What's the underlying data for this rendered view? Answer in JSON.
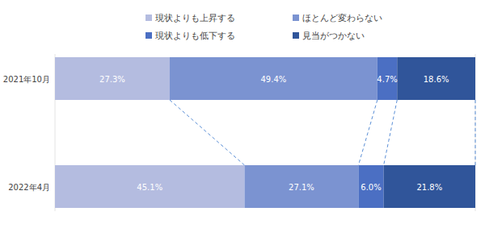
{
  "chart_data": {
    "type": "bar",
    "orientation": "horizontal",
    "stacked": true,
    "data_labels": true,
    "tick_labels": "y",
    "legend": "top",
    "categories": [
      "2021年10月",
      "2022年4月"
    ],
    "xlim": [
      0,
      100
    ],
    "series": [
      {
        "name": "現状よりも上昇する",
        "color": "#b4bce0",
        "values": [
          27.3,
          45.1
        ],
        "value_labels": [
          "27.3%",
          "45.1%"
        ]
      },
      {
        "name": "ほとんど変わらない",
        "color": "#7b93d1",
        "values": [
          49.4,
          27.1
        ],
        "value_labels": [
          "49.4%",
          "27.1%"
        ]
      },
      {
        "name": "現状よりも低下する",
        "color": "#4b6fc3",
        "values": [
          4.7,
          6.0
        ],
        "value_labels": [
          "4.7%",
          "6.0%"
        ]
      },
      {
        "name": "見当がつかない",
        "color": "#30559a",
        "values": [
          18.6,
          21.8
        ],
        "value_labels": [
          "18.6%",
          "21.8%"
        ]
      }
    ]
  }
}
